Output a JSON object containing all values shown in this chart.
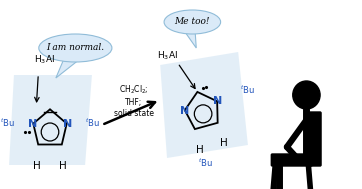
{
  "bg_color": "#ffffff",
  "blue_fill": "#c8dff0",
  "speech_bubble_color": "#daeaf8",
  "speech_bubble_edge": "#90bcd8",
  "blue_text": "#2255bb",
  "bubble1_text": "I am normal.",
  "bubble2_text": "Me too!",
  "reaction_line1": "CH₂Cl₂;",
  "reaction_line2": "THF;",
  "reaction_line3": "solid state"
}
